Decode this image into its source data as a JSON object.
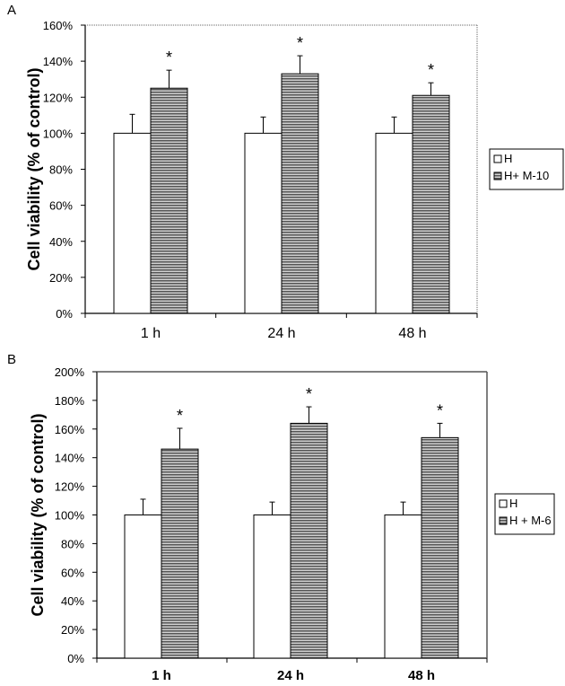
{
  "chart_data": [
    {
      "type": "bar",
      "panel_label": "A",
      "title": "",
      "xlabel": "",
      "ylabel": "Cell viability (% of control)",
      "categories": [
        "1 h",
        "24 h",
        "48 h"
      ],
      "ylim": [
        0,
        160
      ],
      "yticks": [
        "0%",
        "20%",
        "40%",
        "60%",
        "80%",
        "100%",
        "120%",
        "140%",
        "160%"
      ],
      "series": [
        {
          "name": "H",
          "values": [
            100,
            100,
            100
          ],
          "errors": [
            10.5,
            9,
            9
          ],
          "fill": "white"
        },
        {
          "name": "H+ M-10",
          "values": [
            125,
            133,
            121
          ],
          "errors": [
            10,
            10,
            7
          ],
          "fill": "striped"
        }
      ],
      "annotations": [
        "*",
        "*",
        "*"
      ],
      "legend": "right"
    },
    {
      "type": "bar",
      "panel_label": "B",
      "title": "",
      "xlabel": "",
      "ylabel": "Cell viability (% of control)",
      "categories": [
        "1 h",
        "24 h",
        "48 h"
      ],
      "ylim": [
        0,
        200
      ],
      "yticks": [
        "0%",
        "20%",
        "40%",
        "60%",
        "80%",
        "100%",
        "120%",
        "140%",
        "160%",
        "180%",
        "200%"
      ],
      "series": [
        {
          "name": "H",
          "values": [
            100,
            100,
            100
          ],
          "errors": [
            11,
            9,
            9
          ],
          "fill": "white"
        },
        {
          "name": "H + M-6",
          "values": [
            146,
            164,
            154
          ],
          "errors": [
            14.5,
            11.5,
            10
          ],
          "fill": "striped"
        }
      ],
      "annotations": [
        "*",
        "*",
        "*"
      ],
      "legend": "right"
    }
  ]
}
